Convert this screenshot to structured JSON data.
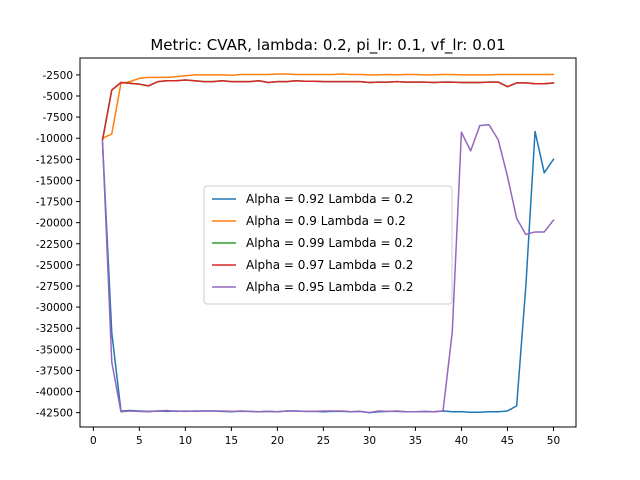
{
  "chart_data": {
    "type": "line",
    "title": "Metric: CVAR, lambda: 0.2, pi_lr: 0.1, vf_lr: 0.01",
    "xlabel": "",
    "ylabel": "",
    "xlim": [
      -1.45,
      52.45
    ],
    "ylim": [
      -44200,
      -500
    ],
    "xticks": [
      0,
      5,
      10,
      15,
      20,
      25,
      30,
      35,
      40,
      45,
      50
    ],
    "yticks": [
      -42500,
      -40000,
      -37500,
      -35000,
      -32500,
      -30000,
      -27500,
      -25000,
      -22500,
      -20000,
      -17500,
      -15000,
      -12500,
      -10000,
      -7500,
      -5000,
      -2500
    ],
    "grid": false,
    "legend_position": "center",
    "x": [
      1,
      2,
      3,
      4,
      5,
      6,
      7,
      8,
      9,
      10,
      11,
      12,
      13,
      14,
      15,
      16,
      17,
      18,
      19,
      20,
      21,
      22,
      23,
      24,
      25,
      26,
      27,
      28,
      29,
      30,
      31,
      32,
      33,
      34,
      35,
      36,
      37,
      38,
      39,
      40,
      41,
      42,
      43,
      44,
      45,
      46,
      47,
      48,
      49,
      50
    ],
    "series": [
      {
        "name": "Alpha = 0.92  Lambda = 0.2",
        "color": "#1f77b4",
        "values": [
          -10600,
          -33000,
          -42300,
          -42250,
          -42300,
          -42350,
          -42300,
          -42350,
          -42300,
          -42350,
          -42300,
          -42300,
          -42300,
          -42350,
          -42400,
          -42300,
          -42350,
          -42400,
          -42350,
          -42400,
          -42300,
          -42300,
          -42350,
          -42350,
          -42400,
          -42350,
          -42350,
          -42400,
          -42350,
          -42500,
          -42400,
          -42350,
          -42350,
          -42400,
          -42400,
          -42350,
          -42400,
          -42300,
          -42400,
          -42400,
          -42450,
          -42450,
          -42400,
          -42400,
          -42300,
          -41700,
          -27500,
          -9200,
          -14100,
          -12500
        ]
      },
      {
        "name": "Alpha = 0.9  Lambda = 0.2",
        "color": "#ff7f0e",
        "values": [
          -10000,
          -9500,
          -3500,
          -3300,
          -2900,
          -2800,
          -2800,
          -2800,
          -2700,
          -2600,
          -2500,
          -2500,
          -2500,
          -2500,
          -2550,
          -2450,
          -2450,
          -2450,
          -2450,
          -2400,
          -2400,
          -2450,
          -2450,
          -2450,
          -2450,
          -2450,
          -2400,
          -2450,
          -2450,
          -2500,
          -2500,
          -2450,
          -2500,
          -2450,
          -2450,
          -2500,
          -2500,
          -2450,
          -2450,
          -2500,
          -2500,
          -2500,
          -2500,
          -2450,
          -2450,
          -2450,
          -2450,
          -2450,
          -2450,
          -2450
        ]
      },
      {
        "name": "Alpha = 0.99  Lambda = 0.2",
        "color": "#2ca02c",
        "values": [
          -10200,
          -4300,
          -3400,
          -3500,
          -3600,
          -3800,
          -3300,
          -3200,
          -3200,
          -3100,
          -3200,
          -3300,
          -3300,
          -3200,
          -3300,
          -3300,
          -3300,
          -3200,
          -3400,
          -3300,
          -3300,
          -3200,
          -3250,
          -3250,
          -3300,
          -3300,
          -3300,
          -3300,
          -3300,
          -3400,
          -3350,
          -3350,
          -3300,
          -3350,
          -3350,
          -3350,
          -3400,
          -3350,
          -3350,
          -3400,
          -3400,
          -3400,
          -3350,
          -3350,
          -3900,
          -3450,
          -3450,
          -3550,
          -3550,
          -3450
        ]
      },
      {
        "name": "Alpha = 0.97  Lambda = 0.2",
        "color": "#d62728",
        "values": [
          -10200,
          -4300,
          -3400,
          -3500,
          -3600,
          -3800,
          -3300,
          -3200,
          -3200,
          -3100,
          -3200,
          -3300,
          -3300,
          -3200,
          -3300,
          -3300,
          -3300,
          -3200,
          -3400,
          -3300,
          -3300,
          -3200,
          -3250,
          -3250,
          -3300,
          -3300,
          -3300,
          -3300,
          -3300,
          -3400,
          -3350,
          -3350,
          -3300,
          -3350,
          -3350,
          -3350,
          -3400,
          -3350,
          -3350,
          -3400,
          -3400,
          -3400,
          -3350,
          -3350,
          -3900,
          -3450,
          -3450,
          -3550,
          -3550,
          -3450
        ]
      },
      {
        "name": "Alpha = 0.95  Lambda = 0.2",
        "color": "#9467bd",
        "values": [
          -10400,
          -36500,
          -42400,
          -42300,
          -42350,
          -42400,
          -42300,
          -42250,
          -42350,
          -42300,
          -42350,
          -42300,
          -42300,
          -42300,
          -42350,
          -42350,
          -42350,
          -42400,
          -42350,
          -42400,
          -42300,
          -42300,
          -42350,
          -42350,
          -42300,
          -42300,
          -42300,
          -42400,
          -42350,
          -42500,
          -42300,
          -42350,
          -42300,
          -42400,
          -42400,
          -42400,
          -42400,
          -42300,
          -33000,
          -9300,
          -11500,
          -8500,
          -8400,
          -10200,
          -14500,
          -19500,
          -21400,
          -21100,
          -21100,
          -19700
        ]
      }
    ]
  }
}
